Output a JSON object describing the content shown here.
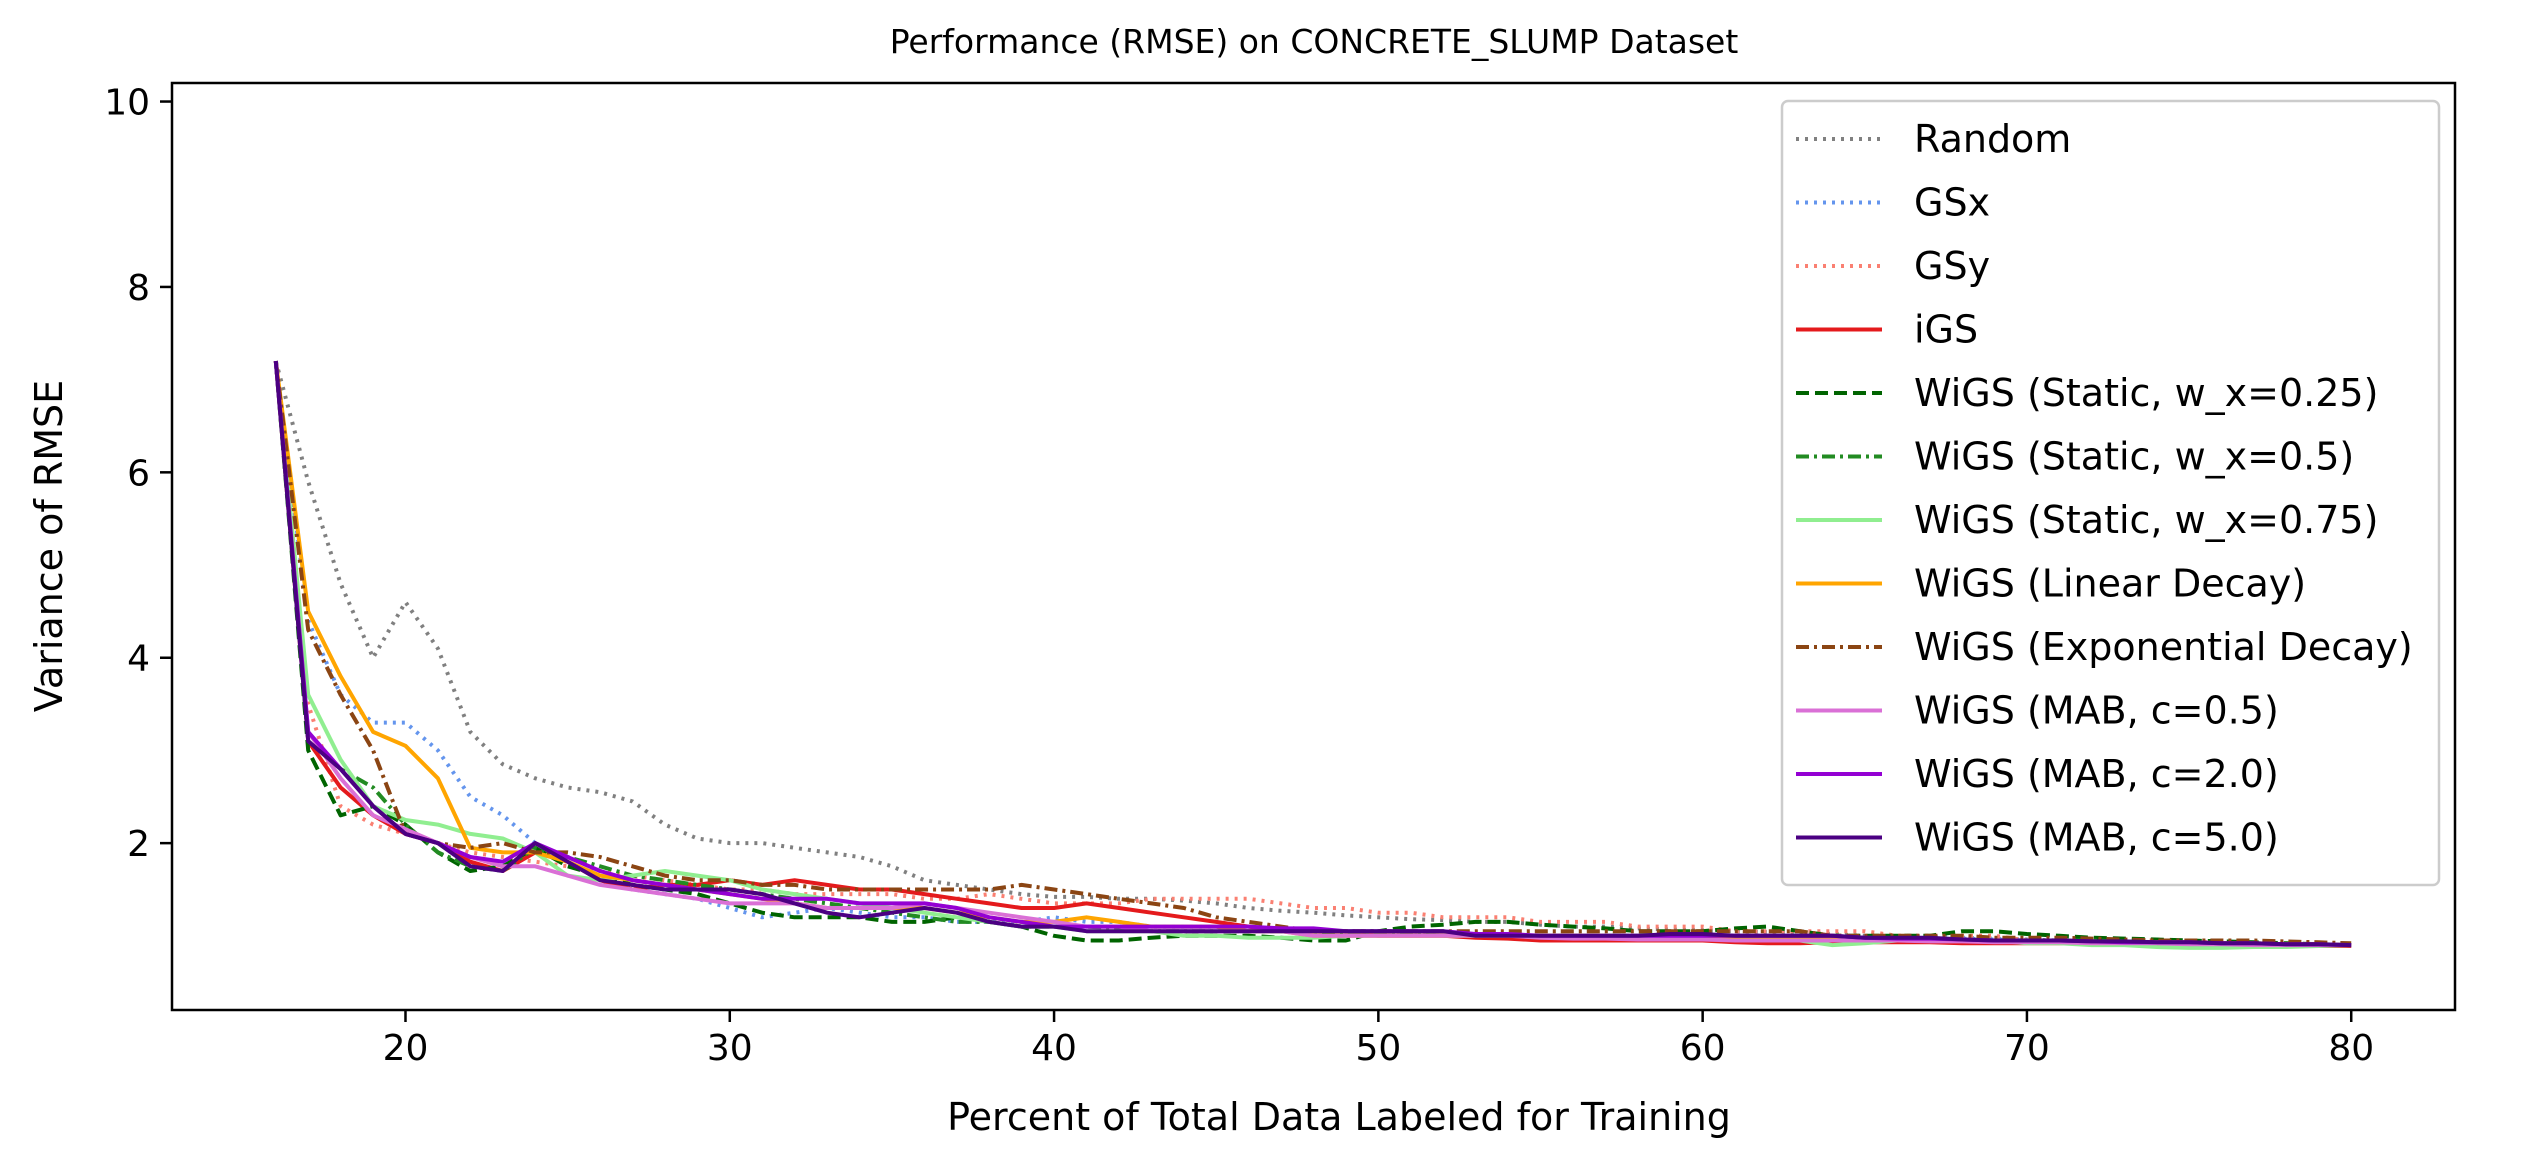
{
  "chart_data": {
    "type": "line",
    "title": "Performance (RMSE) on CONCRETE_SLUMP Dataset",
    "xlabel": "Percent of Total Data Labeled for Training",
    "ylabel": "Variance of RMSE",
    "xlim": [
      12.8,
      83.2
    ],
    "ylim": [
      0.2,
      10.2
    ],
    "xticks": [
      20,
      30,
      40,
      50,
      60,
      70,
      80
    ],
    "yticks": [
      2,
      4,
      6,
      8,
      10
    ],
    "grid": false,
    "legend": "top-right",
    "x": [
      16,
      17,
      18,
      19,
      20,
      21,
      22,
      23,
      24,
      25,
      26,
      27,
      28,
      29,
      30,
      31,
      32,
      33,
      34,
      35,
      36,
      37,
      38,
      39,
      40,
      41,
      42,
      43,
      44,
      45,
      46,
      47,
      48,
      49,
      50,
      51,
      52,
      53,
      54,
      55,
      56,
      57,
      58,
      59,
      60,
      61,
      62,
      63,
      64,
      65,
      66,
      67,
      68,
      69,
      70,
      71,
      72,
      73,
      74,
      75,
      76,
      77,
      78,
      79,
      80
    ],
    "series": [
      {
        "name": "Random",
        "color": "#808080",
        "dash": "dotted",
        "values": [
          7.2,
          5.9,
          4.8,
          4.0,
          4.6,
          4.1,
          3.2,
          2.85,
          2.7,
          2.6,
          2.55,
          2.45,
          2.2,
          2.05,
          2.0,
          2.0,
          1.95,
          1.9,
          1.85,
          1.75,
          1.6,
          1.55,
          1.5,
          1.45,
          1.42,
          1.42,
          1.4,
          1.4,
          1.38,
          1.35,
          1.3,
          1.27,
          1.25,
          1.22,
          1.2,
          1.18,
          1.17,
          1.15,
          1.15,
          1.12,
          1.1,
          1.1,
          1.08,
          1.07,
          1.06,
          1.05,
          1.04,
          1.03,
          1.02,
          1.0,
          1.0,
          0.99,
          0.98,
          0.97,
          0.96,
          0.95,
          0.95,
          0.94,
          0.93,
          0.92,
          0.92,
          0.91,
          0.9,
          0.9,
          0.9
        ]
      },
      {
        "name": "GSx",
        "color": "#6495ed",
        "dash": "dotted",
        "values": [
          7.2,
          4.4,
          3.6,
          3.3,
          3.3,
          3.0,
          2.5,
          2.3,
          2.0,
          1.8,
          1.6,
          1.5,
          1.45,
          1.4,
          1.3,
          1.2,
          1.25,
          1.3,
          1.25,
          1.2,
          1.2,
          1.15,
          1.15,
          1.15,
          1.2,
          1.15,
          1.15,
          1.1,
          1.1,
          1.1,
          1.05,
          1.05,
          1.05,
          1.05,
          1.05,
          1.05,
          1.0,
          1.0,
          1.0,
          1.0,
          1.0,
          1.0,
          1.0,
          1.0,
          1.0,
          1.0,
          1.0,
          1.0,
          0.98,
          0.98,
          0.98,
          0.97,
          0.97,
          0.96,
          0.95,
          0.95,
          0.94,
          0.93,
          0.93,
          0.92,
          0.92,
          0.91,
          0.9,
          0.9,
          0.9
        ]
      },
      {
        "name": "GSy",
        "color": "#fa8072",
        "dash": "dotted",
        "values": [
          7.2,
          3.5,
          2.4,
          2.2,
          2.1,
          2.0,
          1.9,
          1.85,
          1.8,
          1.75,
          1.7,
          1.65,
          1.6,
          1.55,
          1.5,
          1.5,
          1.45,
          1.45,
          1.45,
          1.45,
          1.4,
          1.4,
          1.45,
          1.4,
          1.35,
          1.35,
          1.35,
          1.4,
          1.4,
          1.4,
          1.4,
          1.35,
          1.3,
          1.3,
          1.25,
          1.25,
          1.2,
          1.2,
          1.2,
          1.15,
          1.15,
          1.15,
          1.1,
          1.1,
          1.1,
          1.05,
          1.05,
          1.05,
          1.05,
          1.05,
          1.0,
          1.0,
          1.0,
          1.0,
          0.95,
          0.95,
          0.95,
          0.95,
          0.95,
          0.95,
          0.92,
          0.92,
          0.9,
          0.9,
          0.9
        ]
      },
      {
        "name": "iGS",
        "color": "#e41a1c",
        "dash": "solid",
        "values": [
          7.2,
          3.1,
          2.6,
          2.3,
          2.1,
          2.0,
          1.8,
          1.7,
          1.9,
          1.8,
          1.6,
          1.5,
          1.55,
          1.55,
          1.6,
          1.55,
          1.6,
          1.55,
          1.5,
          1.5,
          1.45,
          1.4,
          1.35,
          1.3,
          1.3,
          1.35,
          1.3,
          1.25,
          1.2,
          1.15,
          1.1,
          1.05,
          1.05,
          1.05,
          1.0,
          1.0,
          1.0,
          0.98,
          0.97,
          0.95,
          0.95,
          0.95,
          0.95,
          0.95,
          0.95,
          0.93,
          0.92,
          0.92,
          0.93,
          0.93,
          0.93,
          0.93,
          0.92,
          0.92,
          0.92,
          0.92,
          0.92,
          0.91,
          0.91,
          0.9,
          0.9,
          0.9,
          0.9,
          0.89,
          0.89
        ]
      },
      {
        "name": "WiGS (Static, w_x=0.25)",
        "color": "#006400",
        "dash": "dashed",
        "values": [
          7.2,
          3.0,
          2.3,
          2.4,
          2.2,
          1.9,
          1.7,
          1.75,
          1.95,
          1.75,
          1.65,
          1.55,
          1.5,
          1.45,
          1.35,
          1.25,
          1.2,
          1.2,
          1.2,
          1.15,
          1.15,
          1.2,
          1.15,
          1.1,
          1.0,
          0.95,
          0.95,
          0.98,
          1.0,
          1.0,
          1.0,
          0.98,
          0.95,
          0.95,
          1.05,
          1.1,
          1.12,
          1.15,
          1.15,
          1.12,
          1.1,
          1.08,
          1.05,
          1.05,
          1.05,
          1.08,
          1.1,
          1.05,
          1.0,
          1.0,
          1.0,
          1.0,
          1.05,
          1.05,
          1.02,
          1.0,
          0.98,
          0.97,
          0.96,
          0.95,
          0.94,
          0.93,
          0.92,
          0.91,
          0.9
        ]
      },
      {
        "name": "WiGS (Static, w_x=0.5)",
        "color": "#228b22",
        "dash": "dashdot",
        "values": [
          7.2,
          3.1,
          2.8,
          2.6,
          2.2,
          1.9,
          1.75,
          1.7,
          1.95,
          1.85,
          1.75,
          1.65,
          1.6,
          1.55,
          1.5,
          1.45,
          1.4,
          1.35,
          1.3,
          1.25,
          1.2,
          1.15,
          1.15,
          1.1,
          1.1,
          1.1,
          1.08,
          1.05,
          1.05,
          1.05,
          1.05,
          1.05,
          1.05,
          1.02,
          1.02,
          1.02,
          1.0,
          1.0,
          1.0,
          1.0,
          1.0,
          1.0,
          1.0,
          1.0,
          1.0,
          1.0,
          1.0,
          1.0,
          1.0,
          0.98,
          0.97,
          0.97,
          0.96,
          0.95,
          0.95,
          0.95,
          0.95,
          0.94,
          0.93,
          0.93,
          0.92,
          0.92,
          0.91,
          0.91,
          0.9
        ]
      },
      {
        "name": "WiGS (Static, w_x=0.75)",
        "color": "#90ee90",
        "dash": "solid",
        "values": [
          7.2,
          3.6,
          2.9,
          2.4,
          2.25,
          2.2,
          2.1,
          2.05,
          1.9,
          1.65,
          1.6,
          1.65,
          1.7,
          1.65,
          1.6,
          1.5,
          1.45,
          1.4,
          1.35,
          1.3,
          1.25,
          1.2,
          1.15,
          1.1,
          1.1,
          1.05,
          1.05,
          1.05,
          1.0,
          1.0,
          0.98,
          0.98,
          0.98,
          1.0,
          1.0,
          1.0,
          1.0,
          1.0,
          1.0,
          1.0,
          1.0,
          1.0,
          0.98,
          0.98,
          0.98,
          0.97,
          0.96,
          0.95,
          0.9,
          0.92,
          0.95,
          0.95,
          0.95,
          0.95,
          0.92,
          0.92,
          0.9,
          0.9,
          0.88,
          0.87,
          0.87,
          0.88,
          0.88,
          0.89,
          0.9
        ]
      },
      {
        "name": "WiGS (Linear Decay)",
        "color": "#ffa500",
        "dash": "solid",
        "values": [
          7.2,
          4.5,
          3.8,
          3.2,
          3.05,
          2.7,
          1.95,
          1.9,
          1.9,
          1.8,
          1.65,
          1.6,
          1.55,
          1.5,
          1.45,
          1.4,
          1.35,
          1.3,
          1.3,
          1.3,
          1.3,
          1.25,
          1.2,
          1.15,
          1.15,
          1.2,
          1.15,
          1.1,
          1.1,
          1.1,
          1.05,
          1.05,
          1.0,
          1.0,
          1.0,
          1.0,
          1.0,
          1.0,
          1.0,
          1.0,
          1.0,
          1.0,
          0.98,
          0.98,
          0.98,
          0.97,
          0.97,
          0.96,
          0.96,
          0.95,
          0.95,
          0.95,
          0.95,
          0.95,
          0.95,
          0.94,
          0.94,
          0.93,
          0.93,
          0.93,
          0.92,
          0.92,
          0.91,
          0.91,
          0.9
        ]
      },
      {
        "name": "WiGS (Exponential Decay)",
        "color": "#8b4513",
        "dash": "dashdot",
        "values": [
          7.2,
          4.3,
          3.6,
          3.0,
          2.1,
          2.0,
          1.95,
          2.0,
          1.9,
          1.9,
          1.85,
          1.75,
          1.65,
          1.6,
          1.6,
          1.55,
          1.55,
          1.5,
          1.5,
          1.5,
          1.5,
          1.5,
          1.5,
          1.55,
          1.5,
          1.45,
          1.4,
          1.35,
          1.3,
          1.2,
          1.15,
          1.1,
          1.05,
          1.05,
          1.05,
          1.05,
          1.05,
          1.05,
          1.05,
          1.05,
          1.05,
          1.05,
          1.05,
          1.05,
          1.05,
          1.05,
          1.05,
          1.05,
          1.0,
          1.0,
          1.0,
          1.0,
          1.0,
          0.98,
          0.98,
          0.98,
          0.97,
          0.96,
          0.95,
          0.95,
          0.95,
          0.95,
          0.94,
          0.93,
          0.92
        ]
      },
      {
        "name": "WiGS (MAB, c=0.5)",
        "color": "#da70d6",
        "dash": "solid",
        "values": [
          7.2,
          3.2,
          2.7,
          2.3,
          2.15,
          2.0,
          1.85,
          1.75,
          1.75,
          1.65,
          1.55,
          1.5,
          1.45,
          1.4,
          1.35,
          1.35,
          1.35,
          1.3,
          1.3,
          1.3,
          1.35,
          1.3,
          1.25,
          1.2,
          1.15,
          1.1,
          1.1,
          1.05,
          1.05,
          1.05,
          1.05,
          1.05,
          1.0,
          1.0,
          1.0,
          1.0,
          1.0,
          1.0,
          1.0,
          0.98,
          0.97,
          0.97,
          0.96,
          0.96,
          0.96,
          0.95,
          0.95,
          0.95,
          0.95,
          0.95,
          0.95,
          0.94,
          0.94,
          0.93,
          0.93,
          0.93,
          0.92,
          0.92,
          0.92,
          0.91,
          0.91,
          0.9,
          0.9,
          0.9,
          0.9
        ]
      },
      {
        "name": "WiGS (MAB, c=2.0)",
        "color": "#9400d3",
        "dash": "solid",
        "values": [
          7.2,
          3.2,
          2.8,
          2.4,
          2.1,
          2.0,
          1.85,
          1.8,
          2.0,
          1.85,
          1.7,
          1.6,
          1.55,
          1.5,
          1.45,
          1.4,
          1.4,
          1.4,
          1.35,
          1.35,
          1.35,
          1.3,
          1.2,
          1.15,
          1.1,
          1.1,
          1.1,
          1.1,
          1.1,
          1.1,
          1.1,
          1.08,
          1.08,
          1.05,
          1.05,
          1.05,
          1.05,
          1.02,
          1.02,
          1.0,
          1.0,
          1.0,
          1.0,
          1.0,
          1.0,
          1.0,
          1.0,
          1.0,
          1.0,
          0.98,
          0.97,
          0.97,
          0.96,
          0.95,
          0.95,
          0.95,
          0.94,
          0.93,
          0.93,
          0.93,
          0.92,
          0.92,
          0.91,
          0.91,
          0.9
        ]
      },
      {
        "name": "WiGS (MAB, c=5.0)",
        "color": "#4b0082",
        "dash": "solid",
        "values": [
          7.2,
          3.1,
          2.8,
          2.4,
          2.1,
          2.0,
          1.75,
          1.7,
          2.0,
          1.8,
          1.6,
          1.55,
          1.5,
          1.5,
          1.5,
          1.45,
          1.35,
          1.25,
          1.2,
          1.25,
          1.3,
          1.25,
          1.15,
          1.1,
          1.1,
          1.05,
          1.05,
          1.05,
          1.05,
          1.05,
          1.05,
          1.05,
          1.05,
          1.05,
          1.05,
          1.05,
          1.05,
          1.0,
          1.0,
          1.0,
          1.0,
          1.0,
          1.0,
          1.02,
          1.02,
          1.0,
          1.0,
          1.0,
          1.0,
          0.98,
          0.98,
          0.98,
          0.96,
          0.95,
          0.95,
          0.95,
          0.94,
          0.94,
          0.93,
          0.93,
          0.92,
          0.92,
          0.91,
          0.91,
          0.9
        ]
      }
    ]
  }
}
